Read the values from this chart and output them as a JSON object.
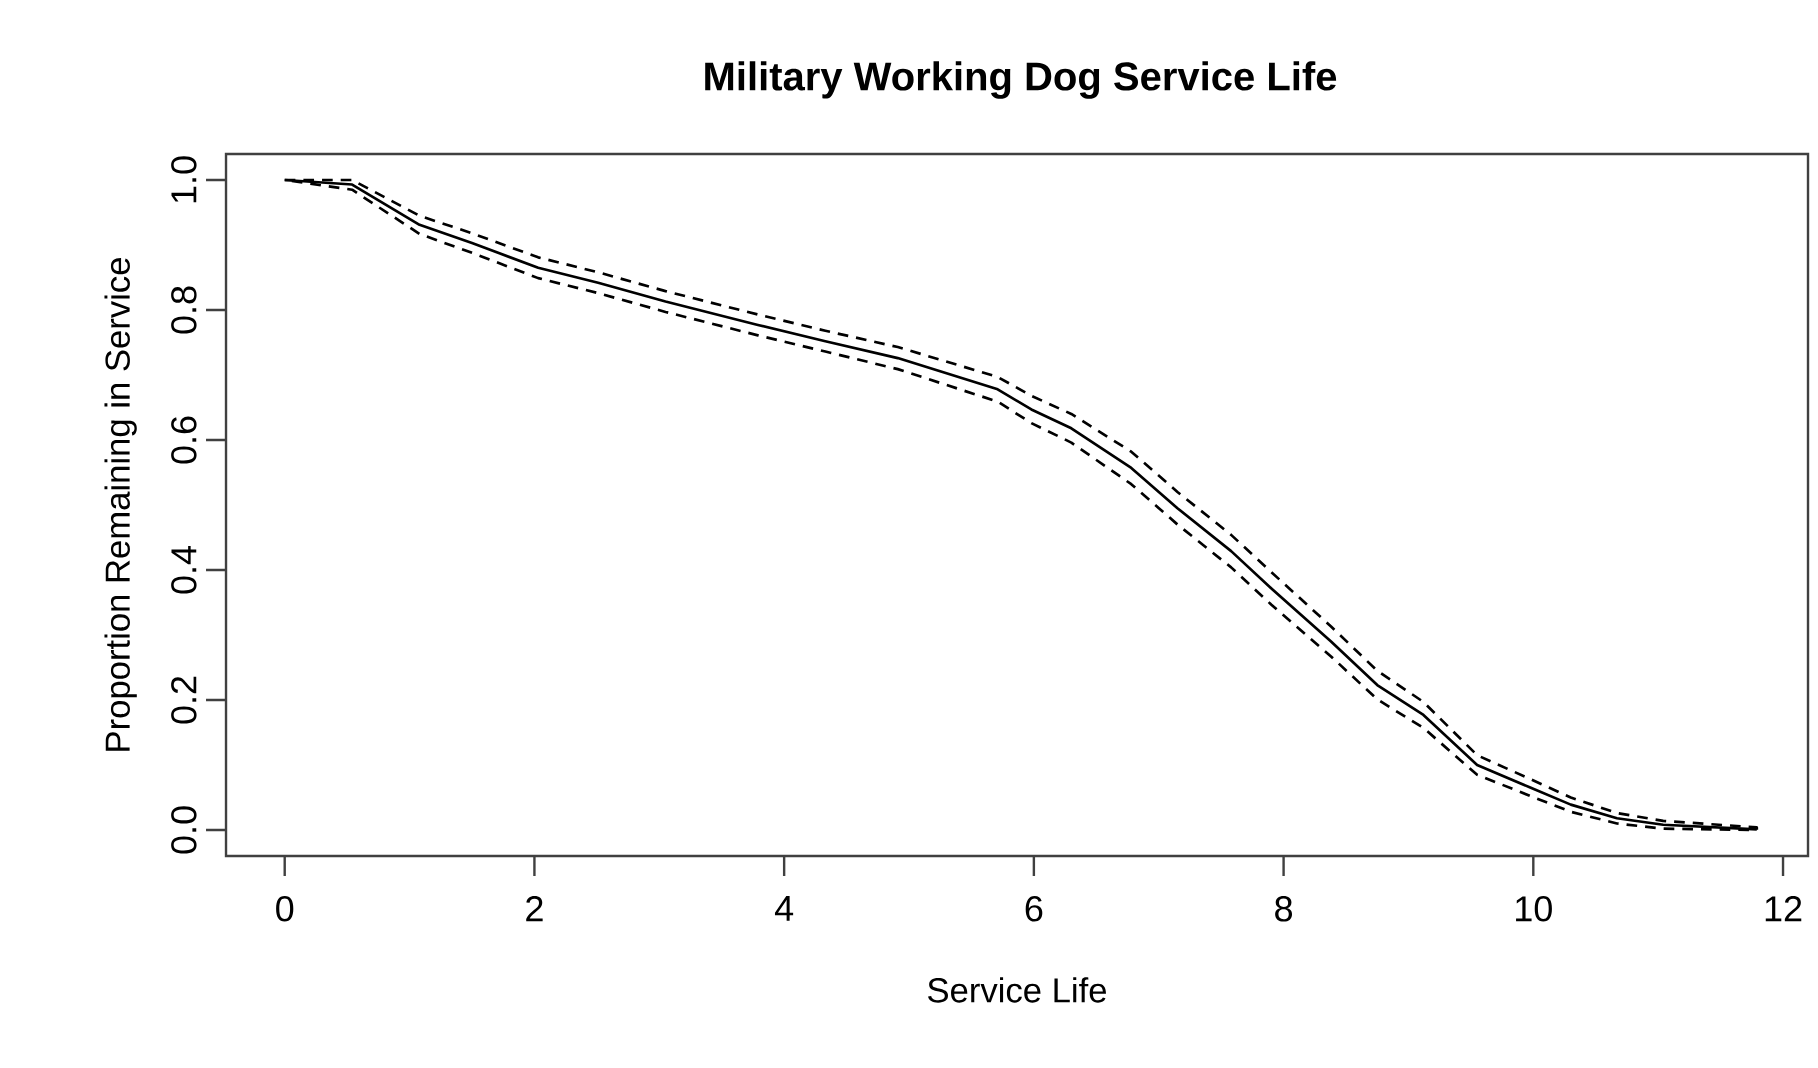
{
  "chart_data": {
    "type": "line",
    "title": "Military Working Dog Service Life",
    "xlabel": "Service Life",
    "ylabel": "Proportion Remaining in Service",
    "x": [
      0,
      0.54,
      1.08,
      1.5,
      2.03,
      2.51,
      3.05,
      3.79,
      4.33,
      4.91,
      5.71,
      5.98,
      6.3,
      6.78,
      7.15,
      7.58,
      7.9,
      8.38,
      8.75,
      9.12,
      9.55,
      9.98,
      10.3,
      10.67,
      11.04,
      11.79
    ],
    "series": [
      {
        "color": "#000000",
        "line_style": "solid",
        "values": [
          1.0,
          0.993,
          0.931,
          0.903,
          0.865,
          0.842,
          0.813,
          0.777,
          0.752,
          0.726,
          0.678,
          0.647,
          0.618,
          0.557,
          0.495,
          0.429,
          0.372,
          0.29,
          0.223,
          0.177,
          0.1,
          0.065,
          0.039,
          0.018,
          0.008,
          0.001
        ],
        "upper": [
          1.0,
          1.0,
          0.945,
          0.918,
          0.881,
          0.858,
          0.829,
          0.793,
          0.768,
          0.743,
          0.697,
          0.668,
          0.64,
          0.582,
          0.52,
          0.454,
          0.397,
          0.313,
          0.245,
          0.197,
          0.115,
          0.078,
          0.05,
          0.026,
          0.014,
          0.004
        ],
        "lower": [
          1.0,
          0.985,
          0.917,
          0.888,
          0.849,
          0.826,
          0.797,
          0.761,
          0.736,
          0.709,
          0.659,
          0.626,
          0.596,
          0.532,
          0.47,
          0.404,
          0.347,
          0.267,
          0.201,
          0.157,
          0.085,
          0.052,
          0.028,
          0.01,
          0.002,
          0.0
        ]
      }
    ],
    "xlim": [
      -0.47,
      12.2
    ],
    "ylim": [
      -0.04,
      1.04
    ],
    "xticks": [
      0,
      2,
      4,
      6,
      8,
      10,
      12
    ],
    "yticks": [
      {
        "value": 0,
        "label": "0.0"
      },
      {
        "value": 0.2,
        "label": "0.2"
      },
      {
        "value": 0.4,
        "label": "0.4"
      },
      {
        "value": 0.6,
        "label": "0.6"
      },
      {
        "value": 0.8,
        "label": "0.8"
      },
      {
        "value": 1,
        "label": "1.0"
      }
    ]
  }
}
